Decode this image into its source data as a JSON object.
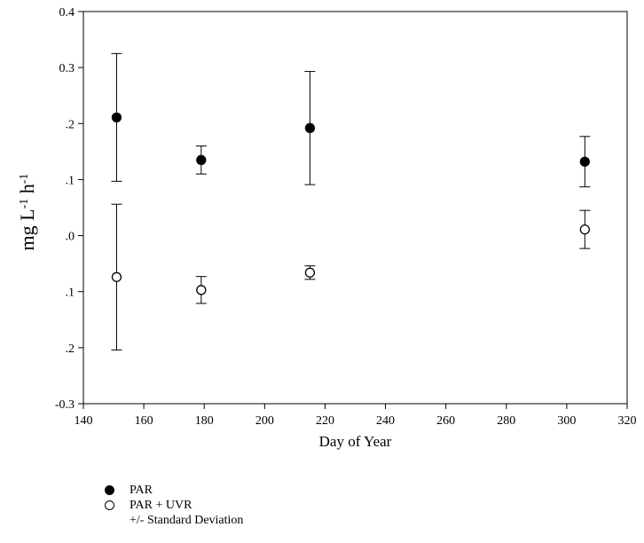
{
  "chart_data": {
    "type": "scatter",
    "xlabel": "Day of Year",
    "ylabel": "mg L-1 h-1",
    "xlim": [
      140,
      320
    ],
    "ylim": [
      -0.3,
      0.4
    ],
    "x_ticks": [
      "140",
      "160",
      "180",
      "200",
      "220",
      "240",
      "260",
      "280",
      "300",
      "320"
    ],
    "y_ticks": [
      {
        "value": 0.4,
        "label": "0.4"
      },
      {
        "value": 0.3,
        "label": "0.3"
      },
      {
        "value": 0.2,
        "label": ".2"
      },
      {
        "value": 0.1,
        "label": ".1"
      },
      {
        "value": 0.0,
        "label": ".0"
      },
      {
        "value": -0.1,
        "label": ".1"
      },
      {
        "value": -0.2,
        "label": ".2"
      },
      {
        "value": -0.3,
        "label": "-0.3"
      }
    ],
    "series": [
      {
        "name": "PAR",
        "marker": "filled-circle",
        "points": [
          {
            "x": 151,
            "y": 0.211,
            "err": 0.114
          },
          {
            "x": 179,
            "y": 0.135,
            "err": 0.025
          },
          {
            "x": 215,
            "y": 0.192,
            "err": 0.101
          },
          {
            "x": 306,
            "y": 0.132,
            "err": 0.045
          }
        ]
      },
      {
        "name": "PAR + UVR",
        "marker": "open-circle",
        "points": [
          {
            "x": 151,
            "y": -0.074,
            "err": 0.13
          },
          {
            "x": 179,
            "y": -0.097,
            "err": 0.024
          },
          {
            "x": 215,
            "y": -0.066,
            "err": 0.012
          },
          {
            "x": 306,
            "y": 0.011,
            "err": 0.034
          }
        ]
      }
    ],
    "legend": {
      "position": "bottom-left",
      "note": "+/- Standard Deviation"
    }
  }
}
